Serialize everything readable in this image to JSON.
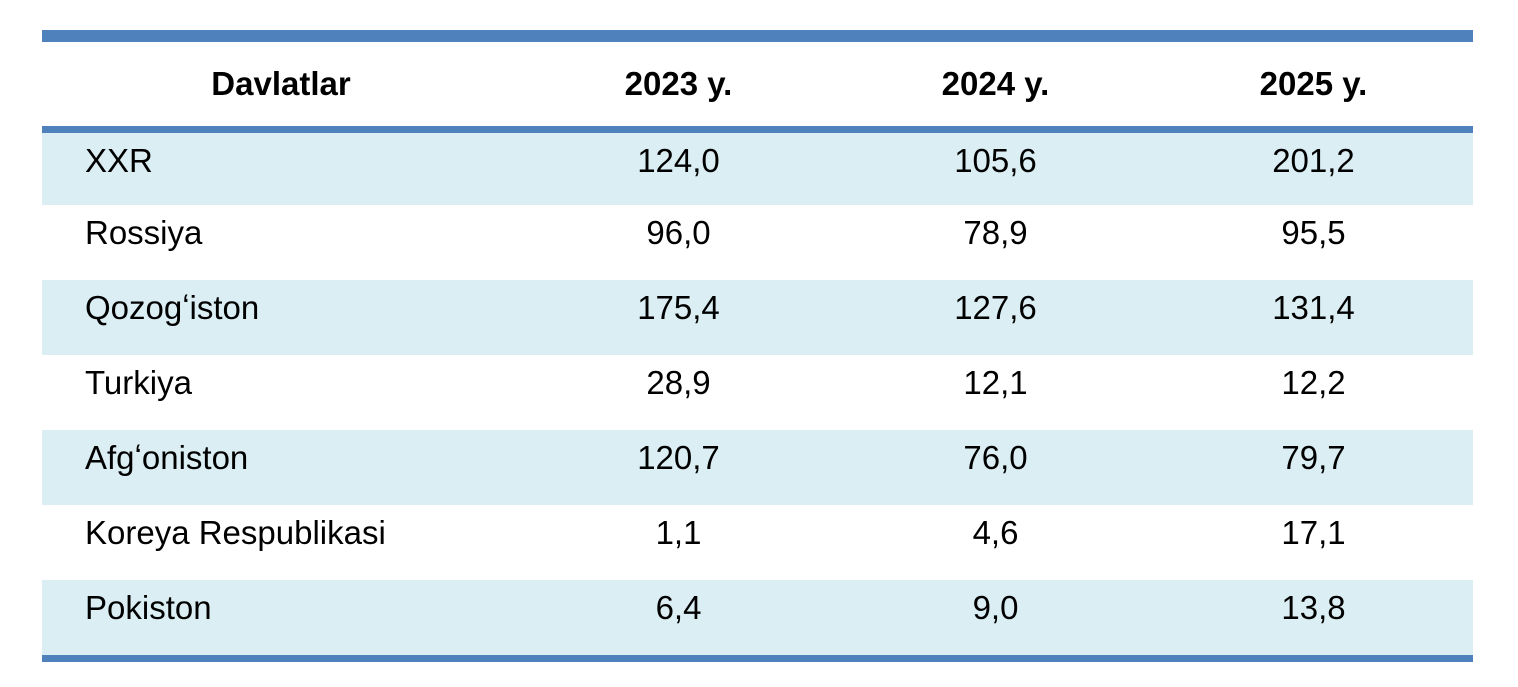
{
  "colors": {
    "accent_blue": "#4f81bd",
    "row_highlight": "#daeef3",
    "text": "#000000"
  },
  "table": {
    "columns": [
      "Davlatlar",
      "2023 y.",
      "2024 y.",
      "2025 y."
    ],
    "rows": [
      {
        "country": "XXR",
        "values": [
          "124,0",
          "105,6",
          "201,2"
        ]
      },
      {
        "country": "Rossiya",
        "values": [
          "96,0",
          "78,9",
          "95,5"
        ]
      },
      {
        "country": "Qozogʻiston",
        "values": [
          "175,4",
          "127,6",
          "131,4"
        ]
      },
      {
        "country": "Turkiya",
        "values": [
          "28,9",
          "12,1",
          "12,2"
        ]
      },
      {
        "country": "Afgʻoniston",
        "values": [
          "120,7",
          "76,0",
          "79,7"
        ]
      },
      {
        "country": "Koreya Respublikasi",
        "values": [
          "1,1",
          "4,6",
          "17,1"
        ]
      },
      {
        "country": "Pokiston",
        "values": [
          "6,4",
          "9,0",
          "13,8"
        ]
      }
    ]
  }
}
